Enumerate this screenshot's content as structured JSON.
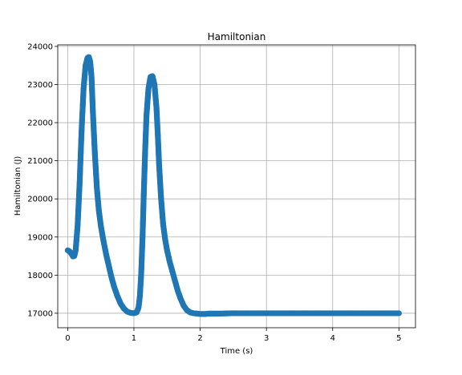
{
  "chart_data": {
    "type": "scatter",
    "title": "Hamiltonian",
    "xlabel": "Time ($s$)",
    "xlabel_display": "Time (s)",
    "ylabel": "Hamiltonian ($J$)",
    "ylabel_display": "Hamiltonian (J)",
    "xlim": [
      -0.15,
      5.25
    ],
    "ylim": [
      16620,
      24040
    ],
    "xticks": [
      0,
      1,
      2,
      3,
      4,
      5
    ],
    "yticks": [
      17000,
      18000,
      19000,
      20000,
      21000,
      22000,
      23000,
      24000
    ],
    "grid": true,
    "marker_color": "#1f77b4",
    "series": [
      {
        "x": [
          0,
          0.03,
          0.06,
          0.08,
          0.1,
          0.12,
          0.15,
          0.18,
          0.21,
          0.24,
          0.27,
          0.3,
          0.32,
          0.34,
          0.36,
          0.38,
          0.41,
          0.44,
          0.47,
          0.5,
          0.54,
          0.58,
          0.62,
          0.66,
          0.7,
          0.75,
          0.8,
          0.85,
          0.9,
          0.95,
          1.0,
          1.04,
          1.07,
          1.09,
          1.11,
          1.13,
          1.15,
          1.17,
          1.19,
          1.22,
          1.25,
          1.28,
          1.31,
          1.34,
          1.36,
          1.38,
          1.41,
          1.44,
          1.47,
          1.5,
          1.54,
          1.58,
          1.62,
          1.66,
          1.7,
          1.75,
          1.8,
          1.85,
          1.9,
          1.95,
          2.0,
          2.04,
          2.08,
          2.12,
          2.2,
          2.3,
          2.4,
          2.5,
          2.6,
          2.7,
          2.8,
          2.9,
          3.0,
          3.2,
          3.4,
          3.6,
          3.8,
          4.0,
          4.2,
          4.4,
          4.6,
          4.8,
          5.0
        ],
        "y": [
          18650,
          18620,
          18550,
          18490,
          18500,
          18650,
          19300,
          20400,
          21800,
          22900,
          23500,
          23700,
          23720,
          23600,
          23200,
          22300,
          21200,
          20300,
          19700,
          19300,
          18900,
          18550,
          18250,
          17950,
          17700,
          17450,
          17250,
          17120,
          17040,
          17010,
          17000,
          17020,
          17150,
          17450,
          18050,
          19000,
          20200,
          21300,
          22200,
          22900,
          23200,
          23220,
          23000,
          22400,
          21700,
          20900,
          20000,
          19350,
          18950,
          18650,
          18350,
          18100,
          17850,
          17600,
          17400,
          17200,
          17080,
          17020,
          17000,
          16990,
          16980,
          16980,
          16980,
          16990,
          16990,
          16990,
          16995,
          17000,
          17000,
          17000,
          17000,
          17000,
          17000,
          17000,
          17000,
          17000,
          17000,
          17000,
          17000,
          17000,
          17000,
          17000,
          17000
        ]
      }
    ]
  }
}
